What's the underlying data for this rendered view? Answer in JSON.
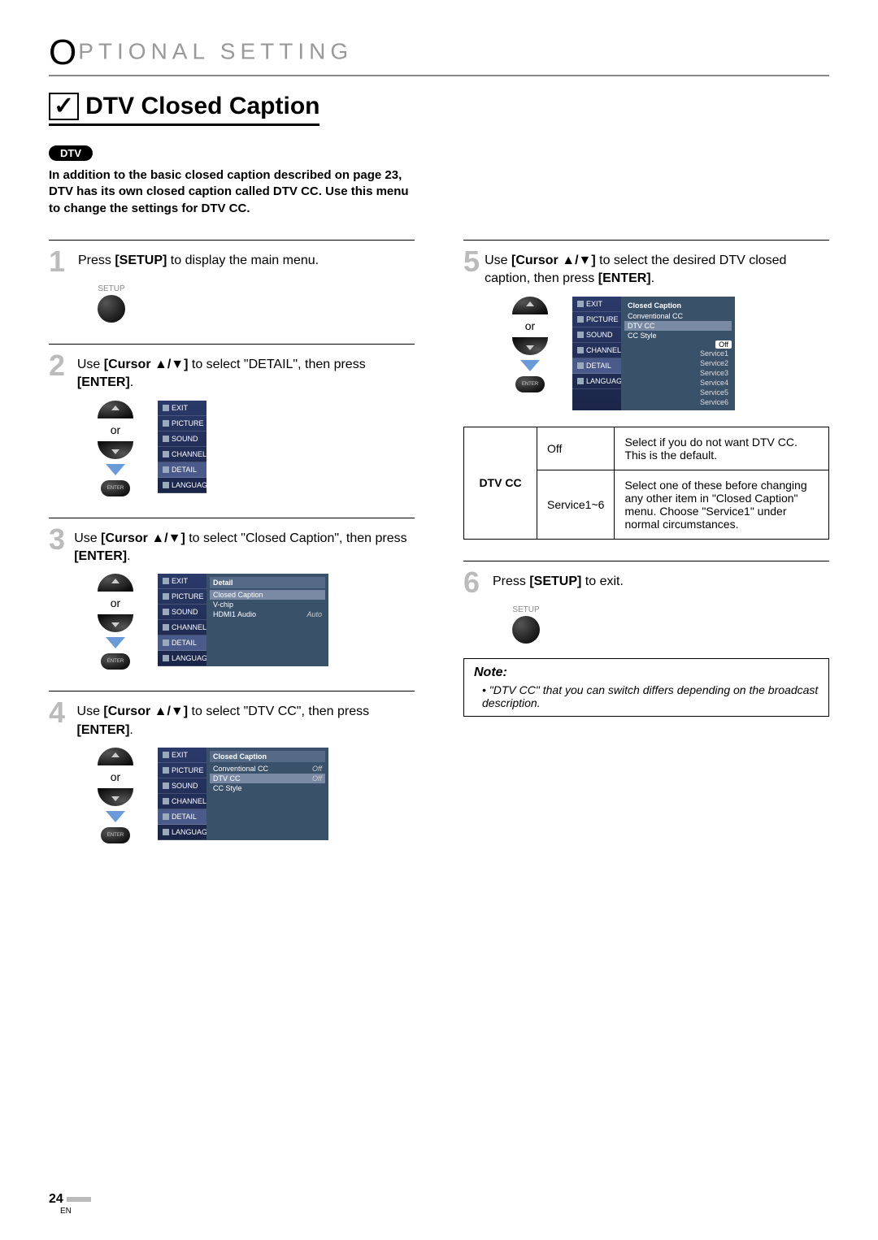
{
  "header": {
    "section": "PTIONAL  SETTING",
    "big_letter": "O"
  },
  "title": {
    "check": "✓",
    "text": "DTV Closed Caption"
  },
  "badge": "DTV",
  "intro": "In addition to the basic closed caption described on page 23, DTV has its own closed caption called DTV CC. Use this menu to change the settings for DTV CC.",
  "steps": {
    "s1": {
      "num": "1",
      "pre": "Press ",
      "bold": "[SETUP]",
      "post": " to display the main menu.",
      "setup_label": "SETUP"
    },
    "s2": {
      "num": "2",
      "pre": "Use ",
      "bold1": "[Cursor ▲/▼]",
      "mid": " to select \"DETAIL\", then press ",
      "bold2": "[ENTER]",
      "post": ".",
      "or": "or",
      "enter": "ENTER"
    },
    "s3": {
      "num": "3",
      "pre": "Use ",
      "bold1": "[Cursor ▲/▼]",
      "mid": " to select \"Closed Caption\", then press ",
      "bold2": "[ENTER]",
      "post": ".",
      "or": "or",
      "enter": "ENTER"
    },
    "s4": {
      "num": "4",
      "pre": "Use ",
      "bold1": "[Cursor ▲/▼]",
      "mid": " to select \"DTV CC\", then press ",
      "bold2": "[ENTER]",
      "post": ".",
      "or": "or",
      "enter": "ENTER"
    },
    "s5": {
      "num": "5",
      "pre": "Use ",
      "bold1": "[Cursor ▲/▼]",
      "mid": " to select the desired DTV closed caption, then press ",
      "bold2": "[ENTER]",
      "post": ".",
      "or": "or",
      "enter": "ENTER"
    },
    "s6": {
      "num": "6",
      "pre": "Press ",
      "bold": "[SETUP]",
      "post": " to exit.",
      "setup_label": "SETUP"
    }
  },
  "sidebar_items": [
    "EXIT",
    "PICTURE",
    "SOUND",
    "CHANNEL",
    "DETAIL",
    "LANGUAGE"
  ],
  "panel3": {
    "title": "Detail",
    "rows": [
      {
        "label": "Closed Caption",
        "val": "",
        "sel": true
      },
      {
        "label": "V-chip",
        "val": ""
      },
      {
        "label": "HDMI1 Audio",
        "val": "Auto"
      }
    ]
  },
  "panel4": {
    "title": "Closed Caption",
    "rows": [
      {
        "label": "Conventional CC",
        "val": "Off"
      },
      {
        "label": "DTV CC",
        "val": "Off",
        "sel": true
      },
      {
        "label": "CC Style",
        "val": ""
      }
    ]
  },
  "panel5": {
    "title": "Closed Caption",
    "rows": [
      {
        "label": "Conventional CC"
      },
      {
        "label": "DTV CC",
        "sel": true
      },
      {
        "label": "CC Style"
      }
    ],
    "options": [
      "Off",
      "Service1",
      "Service2",
      "Service3",
      "Service4",
      "Service5",
      "Service6"
    ]
  },
  "table": {
    "label": "DTV CC",
    "rows": [
      {
        "opt": "Off",
        "desc": "Select if you do not want DTV CC. This is the default."
      },
      {
        "opt": "Service1~6",
        "desc": "Select one of these before changing any other item in \"Closed Caption\" menu. Choose \"Service1\" under normal circumstances."
      }
    ]
  },
  "note": {
    "heading": "Note:",
    "text": "\"DTV CC\" that you can switch differs depending on the broadcast description."
  },
  "page": {
    "num": "24",
    "lang": "EN"
  }
}
